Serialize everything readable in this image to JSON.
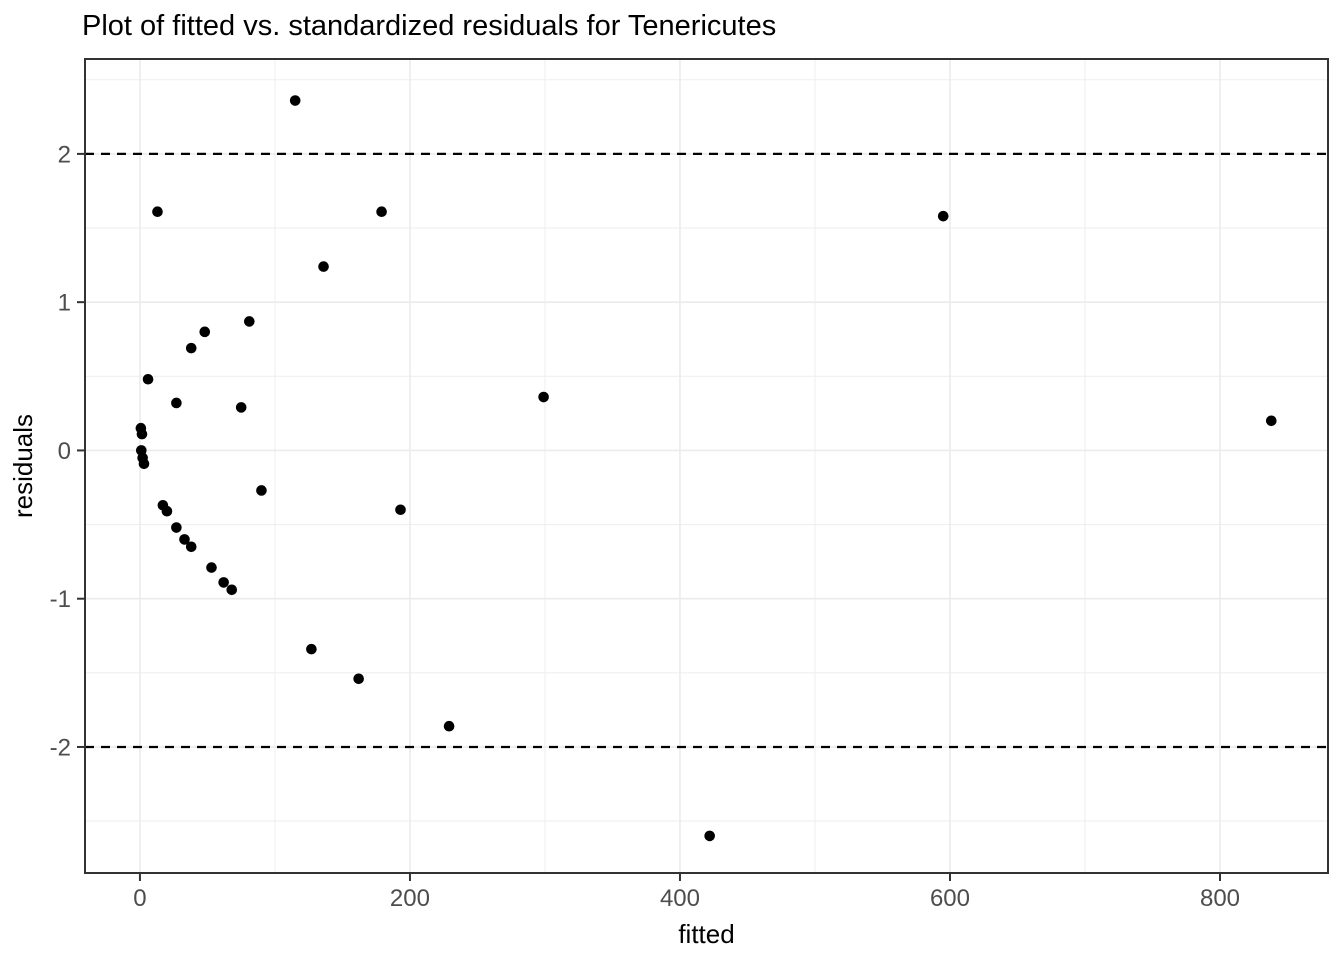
{
  "colors": {
    "background": "#FFFFFF",
    "panel_background": "#FFFFFF",
    "panel_border": "#333333",
    "grid_major": "#EBEBEB",
    "grid_minor": "#EFEFEF",
    "tick": "#333333",
    "tick_label": "#4D4D4D",
    "axis_title": "#000000",
    "title": "#000000",
    "point": "#000000",
    "threshold_line": "#000000"
  },
  "chart_data": {
    "type": "scatter",
    "title": "Plot of fitted vs. standardized residuals for Tenericutes",
    "xlabel": "fitted",
    "ylabel": "residuals",
    "xlim": [
      -40.7,
      880
    ],
    "ylim": [
      -2.85,
      2.64
    ],
    "x_major_breaks": [
      0,
      200,
      400,
      600,
      800
    ],
    "x_minor_breaks": [
      100,
      300,
      500,
      700
    ],
    "y_major_breaks": [
      2,
      1,
      0,
      -1,
      -2
    ],
    "y_minor_breaks": [
      2.5,
      1.5,
      0.5,
      -0.5,
      -1.5,
      -2.5
    ],
    "x_tick_labels": [
      "0",
      "200",
      "400",
      "600",
      "800"
    ],
    "y_tick_labels": [
      "2",
      "1",
      "0",
      "-1",
      "-2"
    ],
    "threshold_hlines": [
      2,
      -2
    ],
    "grid": true,
    "legend_position": "none",
    "points": [
      [
        115,
        2.36
      ],
      [
        13,
        1.61
      ],
      [
        179,
        1.61
      ],
      [
        595,
        1.58
      ],
      [
        136,
        1.24
      ],
      [
        81,
        0.87
      ],
      [
        48,
        0.8
      ],
      [
        38,
        0.69
      ],
      [
        6,
        0.48
      ],
      [
        299,
        0.36
      ],
      [
        27,
        0.32
      ],
      [
        75,
        0.29
      ],
      [
        838,
        0.2
      ],
      [
        0.7,
        0.15
      ],
      [
        1.5,
        0.11
      ],
      [
        1,
        0.0
      ],
      [
        2,
        -0.05
      ],
      [
        3,
        -0.09
      ],
      [
        90,
        -0.27
      ],
      [
        17,
        -0.37
      ],
      [
        20,
        -0.41
      ],
      [
        193,
        -0.4
      ],
      [
        27,
        -0.52
      ],
      [
        33,
        -0.6
      ],
      [
        38,
        -0.65
      ],
      [
        53,
        -0.79
      ],
      [
        62,
        -0.89
      ],
      [
        68,
        -0.94
      ],
      [
        127,
        -1.34
      ],
      [
        162,
        -1.54
      ],
      [
        229,
        -1.86
      ],
      [
        422,
        -2.6
      ]
    ]
  }
}
